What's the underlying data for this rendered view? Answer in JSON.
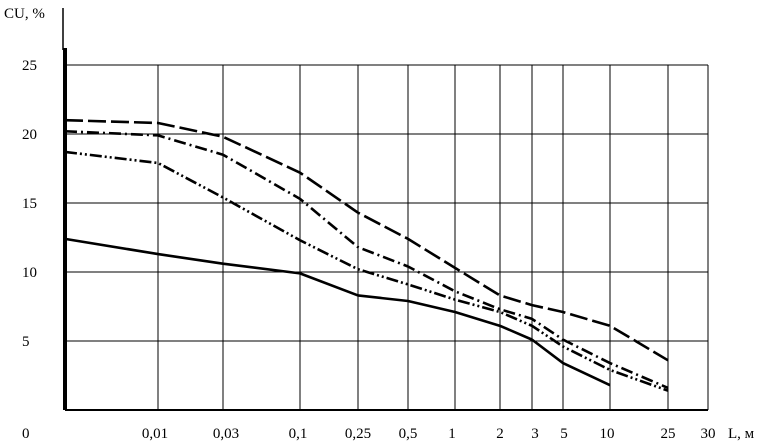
{
  "chart_data": {
    "type": "line",
    "ylabel": "CU, %",
    "xlabel": "L, м",
    "origin_label": "0",
    "x_ticks": [
      "0,01",
      "0,03",
      "0,1",
      "0,25",
      "0,5",
      "1",
      "2",
      "3",
      "5",
      "10",
      "25",
      "30"
    ],
    "y_ticks": [
      5,
      10,
      15,
      20,
      25
    ],
    "ylim": [
      0,
      25
    ],
    "grid": true,
    "series": [
      {
        "style": "solid",
        "points": [
          {
            "x": "start",
            "y": 12.4
          },
          {
            "x": "0,01",
            "y": 11.3
          },
          {
            "x": "0,03",
            "y": 10.6
          },
          {
            "x": "0,1",
            "y": 9.9
          },
          {
            "x": "0,25",
            "y": 8.3
          },
          {
            "x": "0,5",
            "y": 7.9
          },
          {
            "x": "1",
            "y": 7.1
          },
          {
            "x": "2",
            "y": 6.1
          },
          {
            "x": "3",
            "y": 5.1
          },
          {
            "x": "5",
            "y": 3.4
          },
          {
            "x": "10",
            "y": 1.8
          }
        ]
      },
      {
        "style": "dash-dot",
        "points": [
          {
            "x": "start",
            "y": 20.2
          },
          {
            "x": "0,01",
            "y": 19.9
          },
          {
            "x": "0,03",
            "y": 18.5
          },
          {
            "x": "0,1",
            "y": 15.3
          },
          {
            "x": "0,25",
            "y": 11.8
          },
          {
            "x": "0,5",
            "y": 10.4
          },
          {
            "x": "1",
            "y": 8.6
          },
          {
            "x": "2",
            "y": 7.3
          },
          {
            "x": "3",
            "y": 6.6
          },
          {
            "x": "5",
            "y": 5.1
          },
          {
            "x": "10",
            "y": 3.4
          },
          {
            "x": "25",
            "y": 1.6
          }
        ]
      },
      {
        "style": "dash-dot-dot",
        "points": [
          {
            "x": "start",
            "y": 18.7
          },
          {
            "x": "0,01",
            "y": 17.9
          },
          {
            "x": "0,03",
            "y": 15.4
          },
          {
            "x": "0,1",
            "y": 12.3
          },
          {
            "x": "0,25",
            "y": 10.2
          },
          {
            "x": "0,5",
            "y": 9.1
          },
          {
            "x": "1",
            "y": 8.0
          },
          {
            "x": "2",
            "y": 7.1
          },
          {
            "x": "3",
            "y": 6.1
          },
          {
            "x": "5",
            "y": 4.6
          },
          {
            "x": "10",
            "y": 2.9
          },
          {
            "x": "25",
            "y": 1.4
          }
        ]
      },
      {
        "style": "long-dash",
        "points": [
          {
            "x": "start",
            "y": 21.0
          },
          {
            "x": "0,01",
            "y": 20.8
          },
          {
            "x": "0,03",
            "y": 19.8
          },
          {
            "x": "0,1",
            "y": 17.2
          },
          {
            "x": "0,25",
            "y": 14.3
          },
          {
            "x": "0,5",
            "y": 12.4
          },
          {
            "x": "1",
            "y": 10.3
          },
          {
            "x": "2",
            "y": 8.3
          },
          {
            "x": "3",
            "y": 7.6
          },
          {
            "x": "5",
            "y": 7.1
          },
          {
            "x": "10",
            "y": 6.1
          },
          {
            "x": "25",
            "y": 3.6
          }
        ]
      }
    ]
  }
}
